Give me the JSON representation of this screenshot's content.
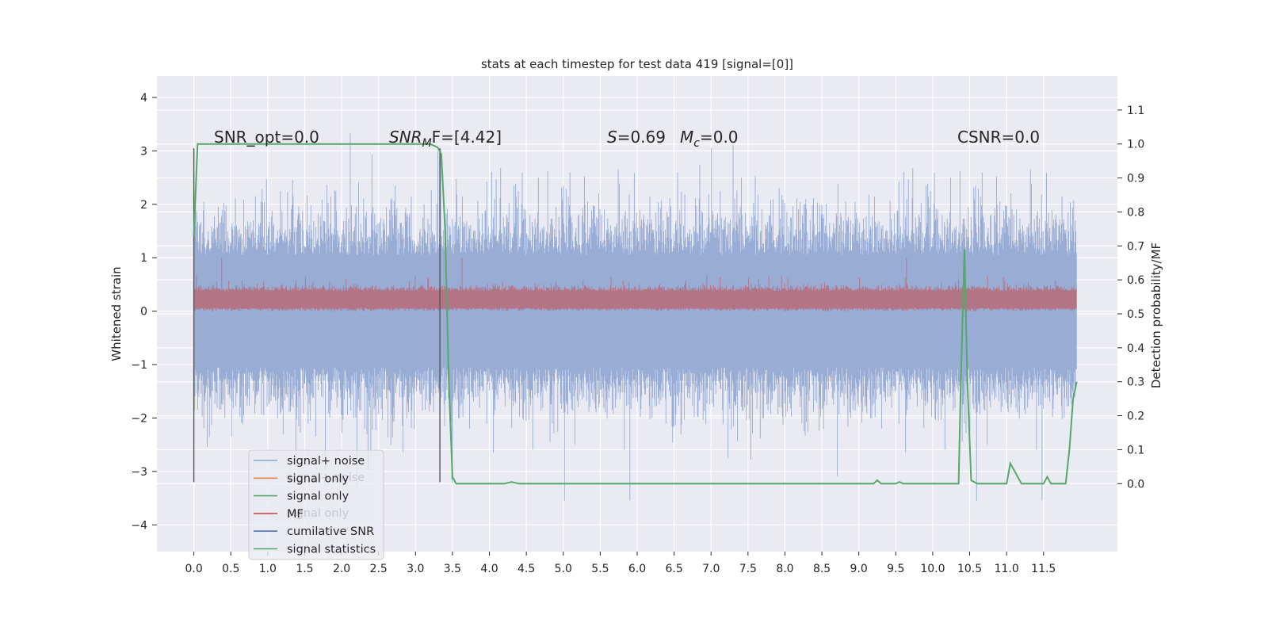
{
  "chart_data": {
    "type": "line",
    "title": "stats at each timestep for test data 419 [signal=[0]]",
    "xlabel": "",
    "ylabel": "Whitened strain",
    "y2label": "Detection probability/MF",
    "xlim": [
      -0.5,
      12.5
    ],
    "ylim": [
      -4.5,
      4.4
    ],
    "y2lim": [
      -0.2,
      1.2
    ],
    "x_ticks": [
      "0.0",
      "0.5",
      "1.0",
      "1.5",
      "2.0",
      "2.5",
      "3.0",
      "3.5",
      "4.0",
      "4.5",
      "5.0",
      "5.5",
      "6.0",
      "6.5",
      "7.0",
      "7.5",
      "8.0",
      "8.5",
      "9.0",
      "9.5",
      "10.0",
      "10.5",
      "11.0",
      "11.5"
    ],
    "y_ticks": [
      "4",
      "3",
      "2",
      "1",
      "0",
      "−1",
      "−2",
      "−3",
      "−4"
    ],
    "y2_ticks": [
      "1.1",
      "1.0",
      "0.9",
      "0.8",
      "0.7",
      "0.6",
      "0.5",
      "0.4",
      "0.3",
      "0.2",
      "0.1",
      "0.0"
    ],
    "grid": true,
    "legend_placement": "lower-left",
    "annotations": {
      "snr_opt": "SNR_opt=0.0",
      "snr_mf_sym": "SNR",
      "snr_mf_sub": "M",
      "snr_mf_rest": "F=[4.42]",
      "s_sym": "S",
      "s_val": "=0.69",
      "mc_sym": "M",
      "mc_sub": "c",
      "mc_val": "=0.0",
      "csnr": "CSNR=0.0"
    },
    "markers": {
      "window_start_x": 0.0,
      "window_end_x": 3.33,
      "y_range": [
        -3.2,
        3.05
      ]
    },
    "series": [
      {
        "name": "signal+ noise",
        "color": "#8fa5d0",
        "kind": "noise",
        "x_range": [
          0.0,
          11.95
        ],
        "approx_range": [
          -3.8,
          3.9
        ],
        "typical_band": [
          -1.4,
          1.4
        ]
      },
      {
        "name": "signal only",
        "color": "#dd8452",
        "kind": "flat",
        "value": 0.0
      },
      {
        "name": "signal only",
        "color": "#55a868",
        "kind": "flat",
        "value": 0.0
      },
      {
        "name": "MF",
        "color": "#c44e52",
        "kind": "band",
        "x_range": [
          0.0,
          11.95
        ],
        "typical_band": [
          0.0,
          0.6
        ],
        "peak": 1.0
      },
      {
        "name": "cumilative SNR",
        "color": "#4c72b0",
        "kind": "flat",
        "value": 0.0
      },
      {
        "name": "signal statistics",
        "color": "#55a868",
        "kind": "probability",
        "axis": "right",
        "x": [
          0.0,
          0.05,
          0.1,
          0.2,
          0.5,
          1.0,
          2.0,
          3.0,
          3.2,
          3.3,
          3.35,
          3.4,
          3.45,
          3.5,
          3.55,
          3.6,
          3.7,
          3.8,
          4.0,
          4.2,
          4.3,
          4.4,
          5.0,
          6.0,
          7.0,
          8.0,
          9.0,
          9.2,
          9.25,
          9.3,
          9.5,
          9.55,
          9.6,
          10.0,
          10.35,
          10.38,
          10.43,
          10.47,
          10.52,
          10.6,
          11.0,
          11.05,
          11.1,
          11.2,
          11.5,
          11.55,
          11.6,
          11.7,
          11.8,
          11.85,
          11.9,
          11.95
        ],
        "values": [
          0.73,
          1.0,
          1.0,
          1.0,
          1.0,
          1.0,
          1.0,
          1.0,
          1.0,
          0.99,
          0.97,
          0.75,
          0.3,
          0.02,
          0.0,
          0.0,
          0.0,
          0.0,
          0.0,
          0.0,
          0.005,
          0.0,
          0.0,
          0.0,
          0.0,
          0.0,
          0.0,
          0.0,
          0.01,
          0.0,
          0.0,
          0.005,
          0.0,
          0.0,
          0.0,
          0.3,
          0.69,
          0.3,
          0.01,
          0.0,
          0.0,
          0.06,
          0.04,
          0.0,
          0.0,
          0.02,
          0.0,
          0.0,
          0.0,
          0.1,
          0.25,
          0.3
        ]
      }
    ]
  }
}
